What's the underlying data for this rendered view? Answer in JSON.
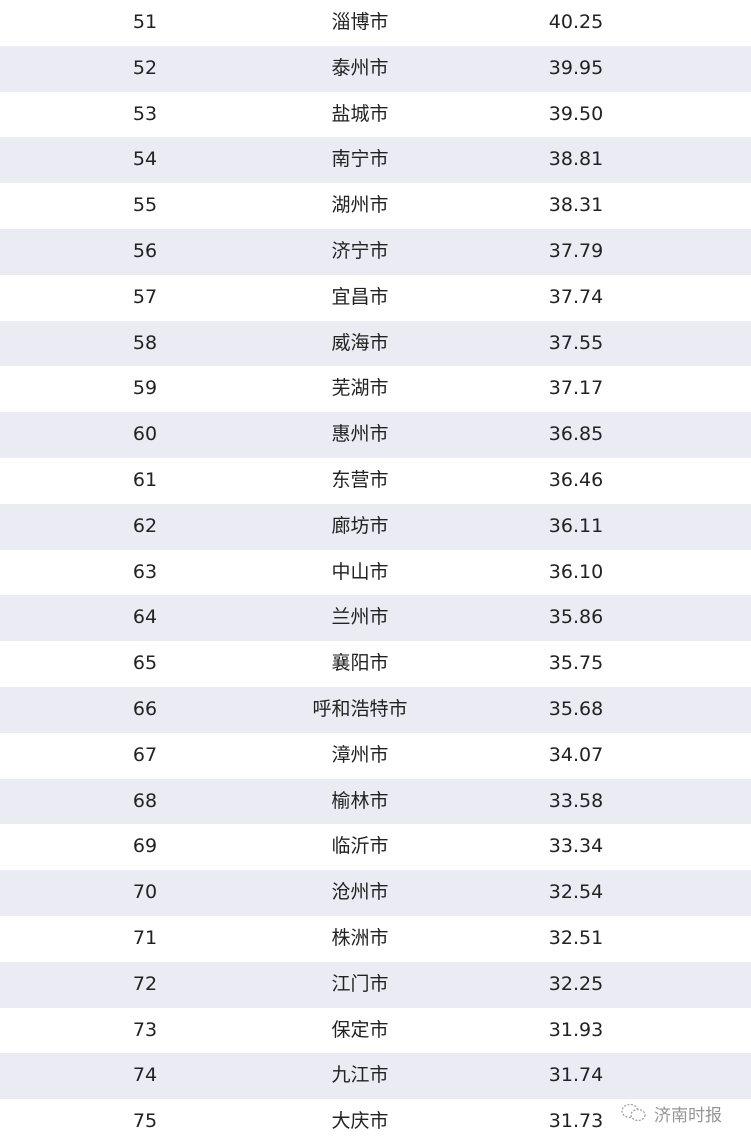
{
  "table": {
    "shade_color": "#ebebf3",
    "rows": [
      {
        "rank": "51",
        "city": "淄博市",
        "score": "40.25"
      },
      {
        "rank": "52",
        "city": "泰州市",
        "score": "39.95"
      },
      {
        "rank": "53",
        "city": "盐城市",
        "score": "39.50"
      },
      {
        "rank": "54",
        "city": "南宁市",
        "score": "38.81"
      },
      {
        "rank": "55",
        "city": "湖州市",
        "score": "38.31"
      },
      {
        "rank": "56",
        "city": "济宁市",
        "score": "37.79"
      },
      {
        "rank": "57",
        "city": "宜昌市",
        "score": "37.74"
      },
      {
        "rank": "58",
        "city": "威海市",
        "score": "37.55"
      },
      {
        "rank": "59",
        "city": "芜湖市",
        "score": "37.17"
      },
      {
        "rank": "60",
        "city": "惠州市",
        "score": "36.85"
      },
      {
        "rank": "61",
        "city": "东营市",
        "score": "36.46"
      },
      {
        "rank": "62",
        "city": "廊坊市",
        "score": "36.11"
      },
      {
        "rank": "63",
        "city": "中山市",
        "score": "36.10"
      },
      {
        "rank": "64",
        "city": "兰州市",
        "score": "35.86"
      },
      {
        "rank": "65",
        "city": "襄阳市",
        "score": "35.75"
      },
      {
        "rank": "66",
        "city": "呼和浩特市",
        "score": "35.68"
      },
      {
        "rank": "67",
        "city": "漳州市",
        "score": "34.07"
      },
      {
        "rank": "68",
        "city": "榆林市",
        "score": "33.58"
      },
      {
        "rank": "69",
        "city": "临沂市",
        "score": "33.34"
      },
      {
        "rank": "70",
        "city": "沧州市",
        "score": "32.54"
      },
      {
        "rank": "71",
        "city": "株洲市",
        "score": "32.51"
      },
      {
        "rank": "72",
        "city": "江门市",
        "score": "32.25"
      },
      {
        "rank": "73",
        "city": "保定市",
        "score": "31.93"
      },
      {
        "rank": "74",
        "city": "九江市",
        "score": "31.74"
      },
      {
        "rank": "75",
        "city": "大庆市",
        "score": "31.73"
      }
    ]
  },
  "watermark": {
    "text": "济南时报",
    "icon": "wechat-icon"
  }
}
